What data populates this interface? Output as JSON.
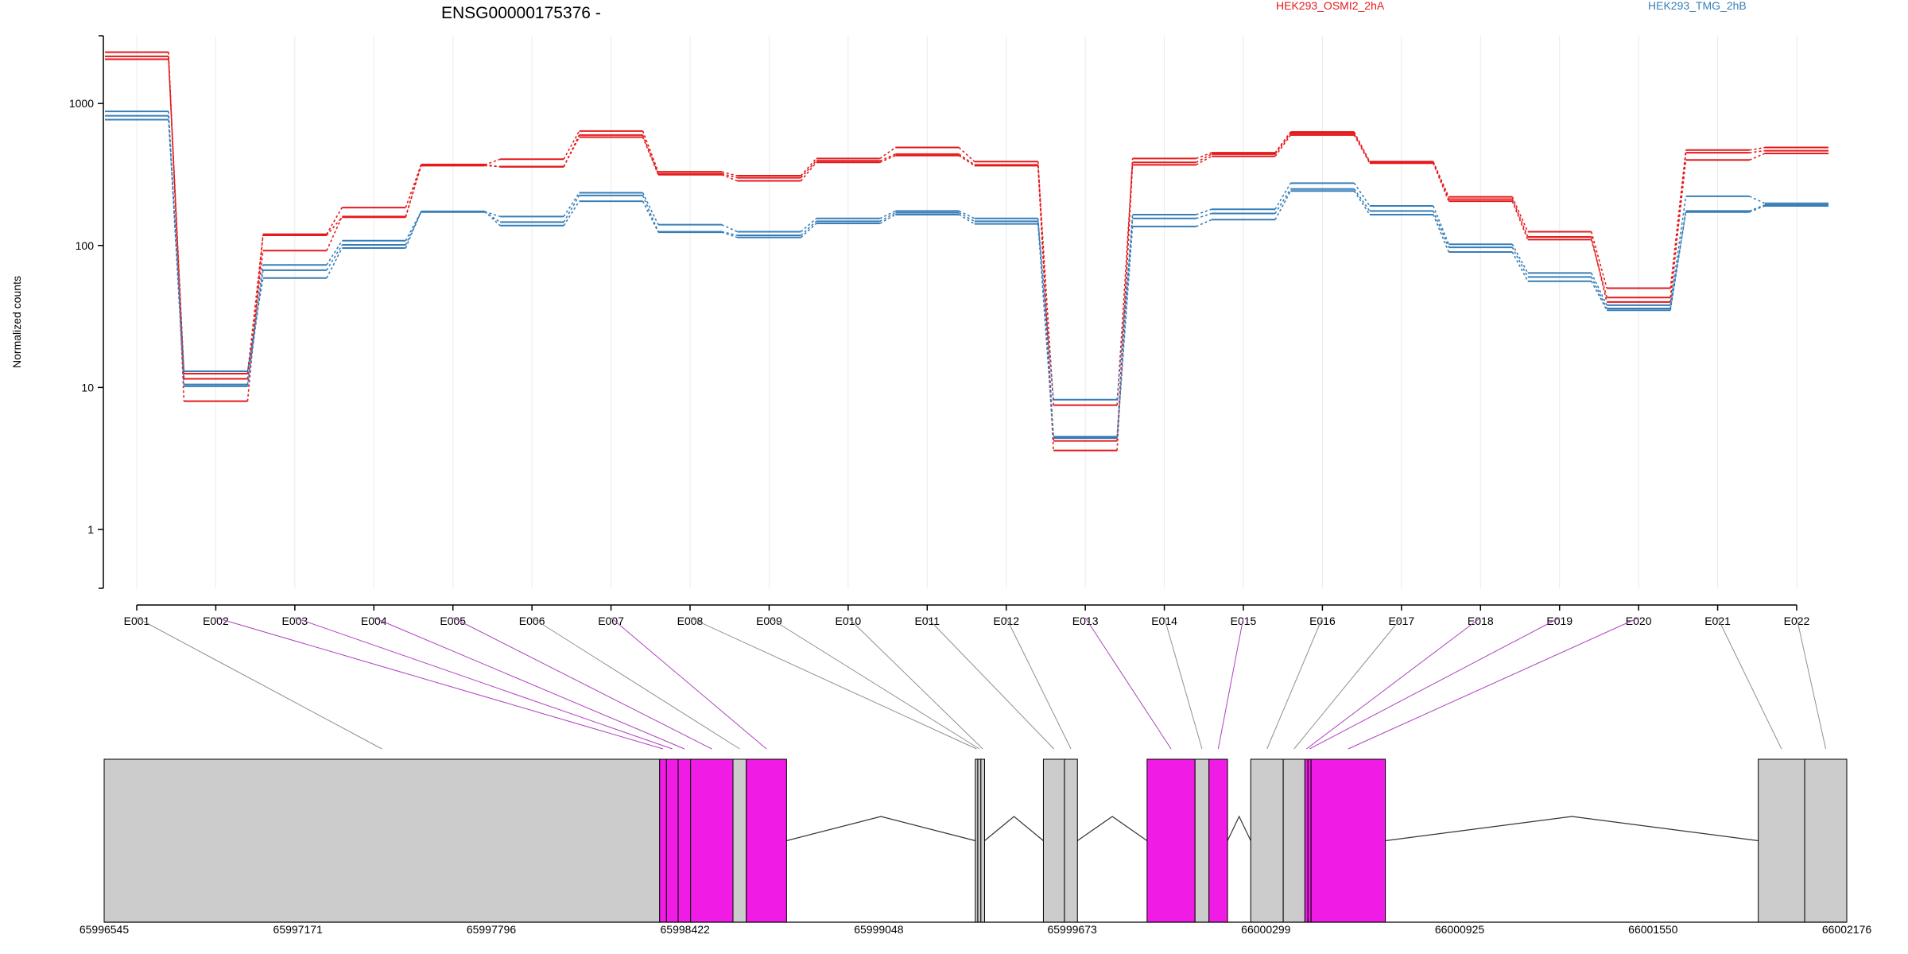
{
  "chart_data": {
    "type": "line",
    "title": "ENSG00000175376 -",
    "ylabel": "Normalized counts",
    "xlabel": "",
    "y_scale": "log",
    "ylim": [
      0.4,
      3000
    ],
    "y_ticks": [
      "1",
      "10",
      "100",
      "1000"
    ],
    "grid": "vertical lines at each exon",
    "legend": {
      "placement": "top-right",
      "entries": [
        {
          "label": "HEK293_OSMI2_2hA",
          "color": "#e41a1c"
        },
        {
          "label": "HEK293_TMG_2hB",
          "color": "#377eb8"
        }
      ]
    },
    "categories": [
      "E001",
      "E002",
      "E003",
      "E004",
      "E005",
      "E006",
      "E007",
      "E008",
      "E009",
      "E010",
      "E011",
      "E012",
      "E013",
      "E014",
      "E015",
      "E016",
      "E017",
      "E018",
      "E019",
      "E020",
      "E021",
      "E022"
    ],
    "series": [
      {
        "name": "HEK293_OSMI2_2hA",
        "color": "#e41a1c",
        "values": [
          2300,
          8,
          120,
          185,
          370,
          405,
          640,
          330,
          310,
          410,
          490,
          390,
          4.2,
          410,
          450,
          630,
          390,
          220,
          125,
          50,
          470,
          490
        ]
      },
      {
        "name": "HEK293_OSMI2_2hA",
        "color": "#e41a1c",
        "values": [
          2150,
          11.5,
          92,
          160,
          365,
          360,
          580,
          315,
          285,
          385,
          430,
          365,
          3.6,
          370,
          425,
          600,
          380,
          205,
          110,
          43,
          400,
          445
        ]
      },
      {
        "name": "HEK293_OSMI2_2hA",
        "color": "#e41a1c",
        "values": [
          2050,
          12.5,
          118,
          158,
          372,
          358,
          600,
          320,
          300,
          395,
          440,
          370,
          7.5,
          385,
          440,
          615,
          385,
          212,
          115,
          40,
          450,
          465
        ]
      },
      {
        "name": "HEK293_TMG_2hB",
        "color": "#377eb8",
        "values": [
          880,
          10.5,
          73,
          108,
          173,
          160,
          235,
          140,
          125,
          155,
          175,
          155,
          4.5,
          165,
          180,
          275,
          190,
          102,
          64,
          38,
          222,
          198
        ]
      },
      {
        "name": "HEK293_TMG_2hB",
        "color": "#377eb8",
        "values": [
          820,
          10.2,
          67,
          101,
          172,
          146,
          225,
          125,
          118,
          148,
          170,
          148,
          8.2,
          155,
          168,
          250,
          175,
          97,
          60,
          36,
          175,
          193
        ]
      },
      {
        "name": "HEK293_TMG_2hB",
        "color": "#377eb8",
        "values": [
          770,
          13,
          59,
          96,
          174,
          138,
          205,
          124,
          114,
          143,
          165,
          142,
          4.4,
          136,
          152,
          242,
          165,
          90,
          56,
          35,
          172,
          190
        ]
      }
    ],
    "gene_model": {
      "axis_labels": [
        "65996545",
        "65997171",
        "65997796",
        "65998422",
        "65999048",
        "65999673",
        "66000299",
        "66000925",
        "66001550",
        "66002176"
      ],
      "axis_range": [
        65996545,
        66002176
      ],
      "exons": [
        {
          "id": "E001",
          "start": 65996545,
          "end": 65998340,
          "color": "#cccccc"
        },
        {
          "id": "E002",
          "start": 65998340,
          "end": 65998362,
          "color": "#f01ce5"
        },
        {
          "id": "E003",
          "start": 65998362,
          "end": 65998400,
          "color": "#f01ce5"
        },
        {
          "id": "E004",
          "start": 65998400,
          "end": 65998440,
          "color": "#f01ce5"
        },
        {
          "id": "E005",
          "start": 65998440,
          "end": 65998577,
          "color": "#f01ce5"
        },
        {
          "id": "E006",
          "start": 65998577,
          "end": 65998620,
          "color": "#cccccc"
        },
        {
          "id": "E007",
          "start": 65998620,
          "end": 65998750,
          "color": "#f01ce5"
        },
        {
          "id": "E008",
          "start": 65999360,
          "end": 65999368,
          "color": "#cccccc"
        },
        {
          "id": "E009",
          "start": 65999368,
          "end": 65999378,
          "color": "#cccccc"
        },
        {
          "id": "E010",
          "start": 65999378,
          "end": 65999390,
          "color": "#cccccc"
        },
        {
          "id": "E011",
          "start": 65999580,
          "end": 65999648,
          "color": "#cccccc"
        },
        {
          "id": "E012",
          "start": 65999648,
          "end": 65999690,
          "color": "#cccccc"
        },
        {
          "id": "E013",
          "start": 65999915,
          "end": 66000070,
          "color": "#f01ce5"
        },
        {
          "id": "E014",
          "start": 66000070,
          "end": 66000115,
          "color": "#cccccc"
        },
        {
          "id": "E015",
          "start": 66000115,
          "end": 66000175,
          "color": "#f01ce5"
        },
        {
          "id": "E016",
          "start": 66000250,
          "end": 66000355,
          "color": "#cccccc"
        },
        {
          "id": "E017",
          "start": 66000355,
          "end": 66000425,
          "color": "#cccccc"
        },
        {
          "id": "E018",
          "start": 66000425,
          "end": 66000435,
          "color": "#f01ce5"
        },
        {
          "id": "E019",
          "start": 66000435,
          "end": 66000445,
          "color": "#f01ce5"
        },
        {
          "id": "E020",
          "start": 66000445,
          "end": 66000685,
          "color": "#f01ce5"
        },
        {
          "id": "E021",
          "start": 66001890,
          "end": 66002040,
          "color": "#cccccc"
        },
        {
          "id": "E022",
          "start": 66002040,
          "end": 66002176,
          "color": "#cccccc"
        }
      ],
      "introns": [
        [
          65998750,
          65999360
        ],
        [
          65999390,
          65999580
        ],
        [
          65999690,
          65999915
        ],
        [
          66000175,
          66000250
        ],
        [
          66000685,
          66001890
        ]
      ]
    }
  }
}
